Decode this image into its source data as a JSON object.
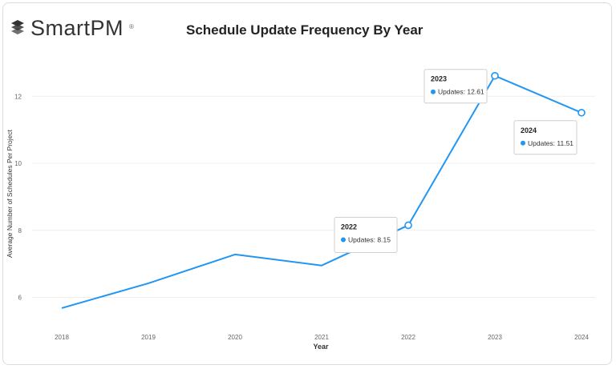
{
  "brand": {
    "name": "SmartPM",
    "reg": "®"
  },
  "chart_data": {
    "type": "line",
    "title": "Schedule Update Frequency By Year",
    "xlabel": "Year",
    "ylabel": "Average Number of Schedules Per Project",
    "x": [
      "2018",
      "2019",
      "2020",
      "2021",
      "2022",
      "2023",
      "2024"
    ],
    "series": [
      {
        "values": [
          5.68,
          6.42,
          7.28,
          6.95,
          8.15,
          12.61,
          11.51
        ]
      }
    ],
    "ylim": [
      5.2,
      13.2
    ],
    "yticks": [
      "6",
      "8",
      "10",
      "12"
    ],
    "grid": true,
    "line_color": "#2196f3",
    "annotations": [
      {
        "year": "2022",
        "title": "2022",
        "label": "Updates",
        "value_text": "8.15"
      },
      {
        "year": "2023",
        "title": "2023",
        "label": "Updates",
        "value_text": "12.61"
      },
      {
        "year": "2024",
        "title": "2024",
        "label": "Updates",
        "value_text": "11.51"
      }
    ]
  }
}
